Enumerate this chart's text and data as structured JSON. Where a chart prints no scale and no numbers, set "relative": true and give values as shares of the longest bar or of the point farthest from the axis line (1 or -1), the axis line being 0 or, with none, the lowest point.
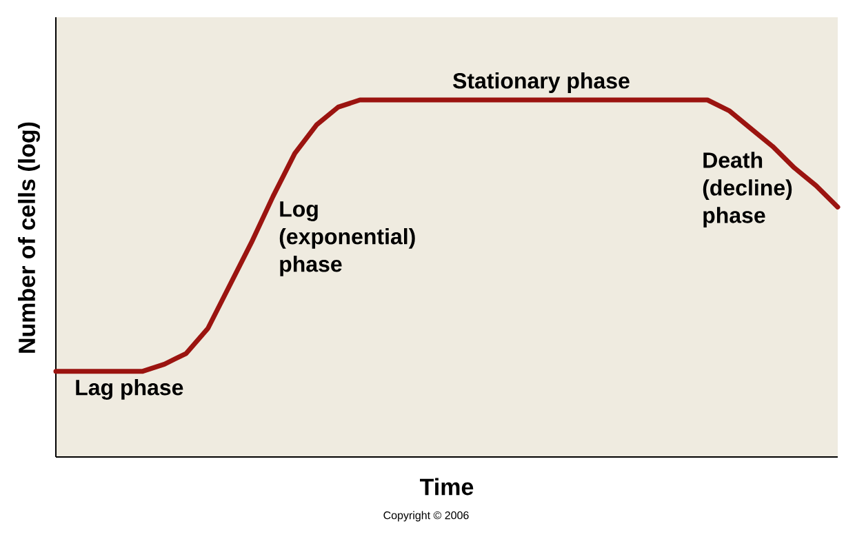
{
  "chart_data": {
    "type": "line",
    "relative": true,
    "xlabel": "Time",
    "ylabel": "Number of cells (log)",
    "categories": [
      null,
      null,
      null,
      null,
      null,
      null,
      null,
      null,
      null,
      null,
      null,
      null,
      null,
      null,
      null,
      null,
      null,
      null,
      null,
      null,
      null,
      null,
      null,
      null,
      null,
      null,
      null,
      null,
      null,
      null,
      null,
      null,
      null,
      null,
      null,
      null,
      null
    ],
    "series": [
      {
        "color": "#9b1410",
        "values": [
          0.24,
          0.24,
          0.24,
          0.24,
          0.24,
          0.26,
          0.29,
          0.36,
          0.48,
          0.6,
          0.73,
          0.85,
          0.93,
          0.98,
          1,
          1,
          1,
          1,
          1,
          1,
          1,
          1,
          1,
          1,
          1,
          1,
          1,
          1,
          1,
          1,
          1,
          0.97,
          0.92,
          0.87,
          0.81,
          0.76,
          0.7
        ]
      }
    ],
    "annotations": [
      "Lag phase",
      "Log (exponential) phase",
      "Stationary phase",
      "Death (decline) phase",
      "Copyright © 2006"
    ]
  }
}
